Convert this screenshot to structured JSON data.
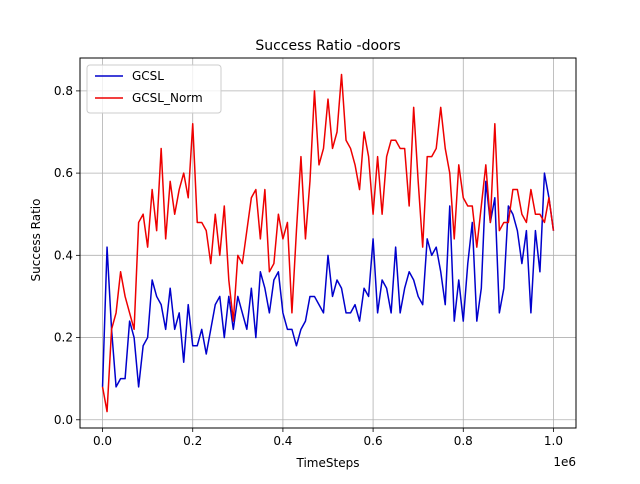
{
  "chart_data": {
    "type": "line",
    "title": "Success Ratio -doors",
    "xlabel": "TimeSteps",
    "ylabel": "Success Ratio",
    "x_multiplier_label": "1e6",
    "xlim": [
      -0.05,
      1.05
    ],
    "ylim": [
      -0.02,
      0.88
    ],
    "xticks": [
      0.0,
      0.2,
      0.4,
      0.6,
      0.8,
      1.0
    ],
    "xtick_labels": [
      "0.0",
      "0.2",
      "0.4",
      "0.6",
      "0.8",
      "1.0"
    ],
    "yticks": [
      0.0,
      0.2,
      0.4,
      0.6,
      0.8
    ],
    "ytick_labels": [
      "0.0",
      "0.2",
      "0.4",
      "0.6",
      "0.8"
    ],
    "grid": true,
    "legend_position": "top-left",
    "x": [
      0.0,
      0.01,
      0.02,
      0.03,
      0.04,
      0.05,
      0.06,
      0.07,
      0.08,
      0.09,
      0.1,
      0.11,
      0.12,
      0.13,
      0.14,
      0.15,
      0.16,
      0.17,
      0.18,
      0.19,
      0.2,
      0.21,
      0.22,
      0.23,
      0.24,
      0.25,
      0.26,
      0.27,
      0.28,
      0.29,
      0.3,
      0.31,
      0.32,
      0.33,
      0.34,
      0.35,
      0.36,
      0.37,
      0.38,
      0.39,
      0.4,
      0.41,
      0.42,
      0.43,
      0.44,
      0.45,
      0.46,
      0.47,
      0.48,
      0.49,
      0.5,
      0.51,
      0.52,
      0.53,
      0.54,
      0.55,
      0.56,
      0.57,
      0.58,
      0.59,
      0.6,
      0.61,
      0.62,
      0.63,
      0.64,
      0.65,
      0.66,
      0.67,
      0.68,
      0.69,
      0.7,
      0.71,
      0.72,
      0.73,
      0.74,
      0.75,
      0.76,
      0.77,
      0.78,
      0.79,
      0.8,
      0.81,
      0.82,
      0.83,
      0.84,
      0.85,
      0.86,
      0.87,
      0.88,
      0.89,
      0.9,
      0.91,
      0.92,
      0.93,
      0.94,
      0.95,
      0.96,
      0.97,
      0.98,
      0.99,
      1.0
    ],
    "series": [
      {
        "name": "GCSL",
        "color": "#0000cc",
        "values": [
          0.08,
          0.42,
          0.22,
          0.08,
          0.1,
          0.1,
          0.24,
          0.2,
          0.08,
          0.18,
          0.2,
          0.34,
          0.3,
          0.28,
          0.22,
          0.32,
          0.22,
          0.26,
          0.14,
          0.28,
          0.18,
          0.18,
          0.22,
          0.16,
          0.22,
          0.28,
          0.3,
          0.2,
          0.3,
          0.22,
          0.3,
          0.26,
          0.22,
          0.32,
          0.2,
          0.36,
          0.32,
          0.26,
          0.34,
          0.36,
          0.26,
          0.22,
          0.22,
          0.18,
          0.22,
          0.24,
          0.3,
          0.3,
          0.28,
          0.26,
          0.4,
          0.3,
          0.34,
          0.32,
          0.26,
          0.26,
          0.28,
          0.24,
          0.32,
          0.3,
          0.44,
          0.26,
          0.34,
          0.32,
          0.26,
          0.42,
          0.26,
          0.32,
          0.36,
          0.34,
          0.3,
          0.28,
          0.44,
          0.4,
          0.42,
          0.36,
          0.28,
          0.52,
          0.24,
          0.34,
          0.24,
          0.38,
          0.48,
          0.24,
          0.32,
          0.58,
          0.48,
          0.54,
          0.26,
          0.32,
          0.52,
          0.5,
          0.46,
          0.38,
          0.46,
          0.26,
          0.46,
          0.36,
          0.6,
          0.54,
          0.46
        ]
      },
      {
        "name": "GCSL_Norm",
        "color": "#ee0000",
        "values": [
          0.08,
          0.02,
          0.22,
          0.26,
          0.36,
          0.3,
          0.26,
          0.22,
          0.48,
          0.5,
          0.42,
          0.56,
          0.46,
          0.66,
          0.44,
          0.58,
          0.5,
          0.56,
          0.6,
          0.54,
          0.72,
          0.48,
          0.48,
          0.46,
          0.38,
          0.5,
          0.4,
          0.52,
          0.34,
          0.24,
          0.4,
          0.38,
          0.46,
          0.54,
          0.56,
          0.44,
          0.56,
          0.36,
          0.38,
          0.5,
          0.44,
          0.48,
          0.26,
          0.46,
          0.64,
          0.44,
          0.58,
          0.8,
          0.62,
          0.66,
          0.78,
          0.66,
          0.7,
          0.84,
          0.68,
          0.66,
          0.62,
          0.56,
          0.7,
          0.64,
          0.5,
          0.64,
          0.5,
          0.64,
          0.68,
          0.68,
          0.66,
          0.66,
          0.52,
          0.76,
          0.58,
          0.42,
          0.64,
          0.64,
          0.66,
          0.76,
          0.66,
          0.6,
          0.44,
          0.62,
          0.54,
          0.52,
          0.52,
          0.42,
          0.52,
          0.62,
          0.48,
          0.72,
          0.46,
          0.48,
          0.48,
          0.56,
          0.56,
          0.5,
          0.48,
          0.56,
          0.5,
          0.5,
          0.48,
          0.54,
          0.46
        ]
      }
    ]
  }
}
